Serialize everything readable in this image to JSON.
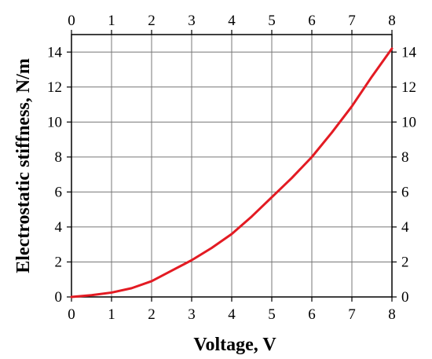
{
  "chart_data": {
    "type": "line",
    "title": "",
    "xlabel": "Voltage, V",
    "ylabel": "Electrostatic stiffness, N/m",
    "xlim": [
      0,
      8
    ],
    "ylim": [
      0,
      15
    ],
    "xticks": [
      "0",
      "1",
      "2",
      "3",
      "4",
      "5",
      "6",
      "7",
      "8"
    ],
    "yticks": [
      "0",
      "2",
      "4",
      "6",
      "8",
      "10",
      "12",
      "14"
    ],
    "grid": true,
    "series": [
      {
        "color": "#e31b23",
        "x": [
          0,
          0.5,
          1,
          1.5,
          2,
          2.5,
          3,
          3.5,
          4,
          4.5,
          5,
          5.5,
          6,
          6.5,
          7,
          7.5,
          8
        ],
        "y": [
          0,
          0.1,
          0.25,
          0.5,
          0.9,
          1.5,
          2.1,
          2.8,
          3.6,
          4.6,
          5.7,
          6.8,
          8.0,
          9.4,
          10.9,
          12.6,
          14.2
        ]
      }
    ]
  }
}
